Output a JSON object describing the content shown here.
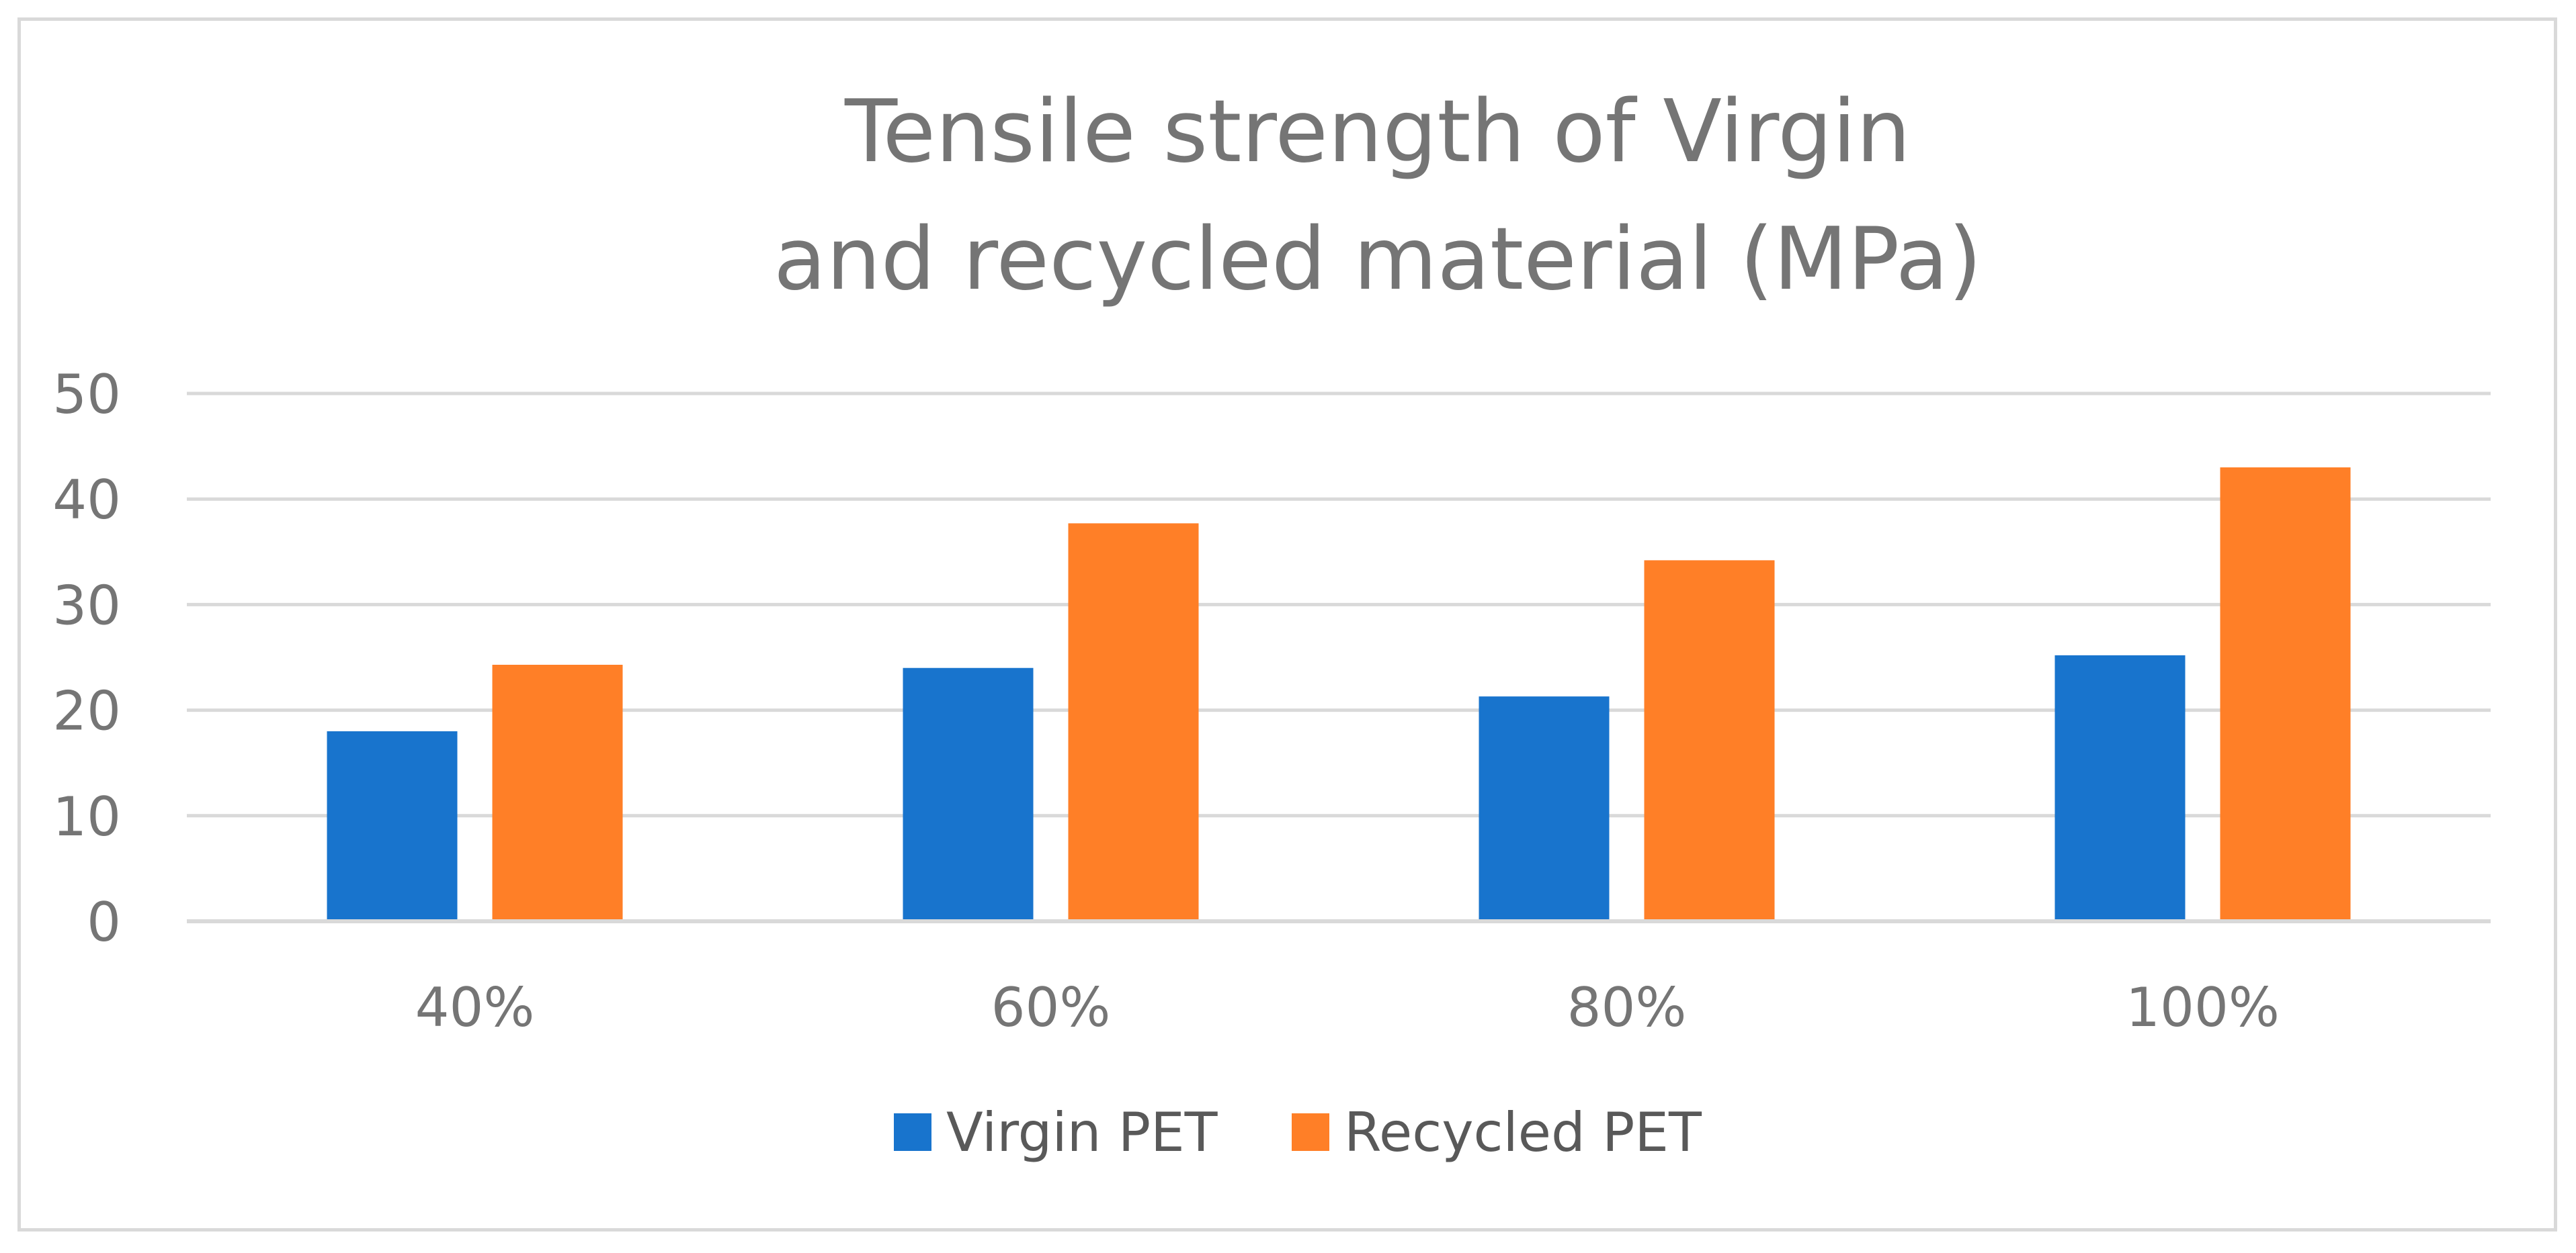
{
  "chart_data": {
    "type": "bar",
    "title_lines": [
      "Tensile strength of Virgin",
      "and recycled material (MPa)"
    ],
    "categories": [
      "40%",
      "60%",
      "80%",
      "100%"
    ],
    "series": [
      {
        "name": "Virgin PET",
        "color": "#1874CD",
        "values": [
          18,
          24,
          21.3,
          25.2
        ]
      },
      {
        "name": "Recycled PET",
        "color": "#FF7F27",
        "values": [
          24.3,
          37.7,
          34.2,
          43
        ]
      }
    ],
    "y_ticks": [
      "0",
      "10",
      "20",
      "30",
      "40",
      "50"
    ],
    "ylim": [
      0,
      50
    ],
    "xlabel": "",
    "ylabel": "",
    "grid": true,
    "legend_position": "bottom-center"
  }
}
